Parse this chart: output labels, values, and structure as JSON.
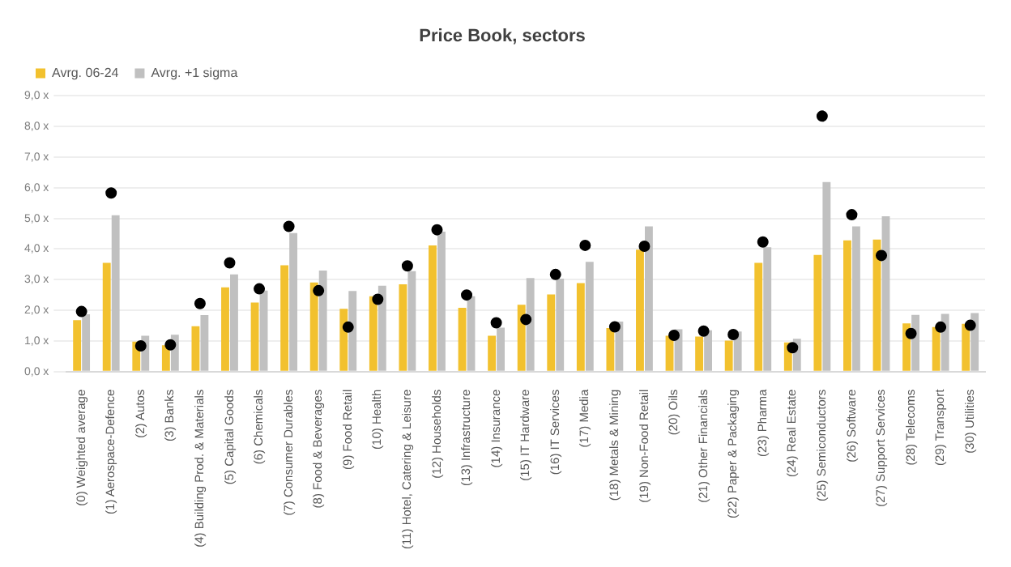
{
  "chart_data": {
    "type": "bar",
    "title": "Price Book, sectors",
    "categories": [
      "(0) Weighted average",
      "(1) Aerospace-Defence",
      "(2) Autos",
      "(3) Banks",
      "(4) Building Prod. & Materials",
      "(5) Capital Goods",
      "(6) Chemicals",
      "(7) Consumer Durables",
      "(8) Food & Beverages",
      "(9) Food Retail",
      "(10) Health",
      "(11) Hotel, Catering & Leisure",
      "(12) Households",
      "(13) Infrastructure",
      "(14) Insurance",
      "(15) IT Hardware",
      "(16) IT Services",
      "(17) Media",
      "(18) Metals & Mining",
      "(19) Non-Food Retail",
      "(20) Oils",
      "(21) Other Financials",
      "(22) Paper & Packaging",
      "(23) Pharma",
      "(24) Real Estate",
      "(25) Semiconductors",
      "(26) Software",
      "(27) Support Services",
      "(28) Telecoms",
      "(29) Transport",
      "(30) Utilities"
    ],
    "series": [
      {
        "name": "Avrg. 06-24",
        "color": "#f2c12e",
        "values": [
          1.68,
          3.55,
          0.98,
          0.86,
          1.48,
          2.75,
          2.25,
          3.47,
          2.91,
          2.05,
          2.46,
          2.85,
          4.12,
          2.08,
          1.17,
          2.18,
          2.52,
          2.89,
          1.42,
          3.98,
          1.17,
          1.14,
          1.01,
          3.55,
          0.95,
          3.81,
          4.28,
          4.31,
          1.57,
          1.45,
          1.56
        ]
      },
      {
        "name": "Avrg. +1 sigma",
        "color": "#c0c0c0",
        "values": [
          1.87,
          5.1,
          1.17,
          1.2,
          1.84,
          3.17,
          2.64,
          4.52,
          3.3,
          2.63,
          2.8,
          3.28,
          4.57,
          2.46,
          1.43,
          3.05,
          3.03,
          3.58,
          1.63,
          4.74,
          1.38,
          1.35,
          1.31,
          4.06,
          1.07,
          6.19,
          4.74,
          5.07,
          1.85,
          1.88,
          1.91
        ]
      },
      {
        "type": "scatter",
        "color": "#000000",
        "x": [
          "(0) Weighted average",
          "(1) Aerospace-Defence",
          "(2) Autos",
          "(3) Banks",
          "(4) Building Prod. & Materials",
          "(5) Capital Goods",
          "(6) Chemicals",
          "(7) Consumer Durables",
          "(8) Food & Beverages",
          "(9) Food Retail",
          "(10) Health",
          "(11) Hotel, Catering & Leisure",
          "(12) Households",
          "(13) Infrastructure",
          "(14) Insurance",
          "(15) IT Hardware",
          "(16) IT Services",
          "(17) Media",
          "(18) Metals & Mining",
          "(19) Non-Food Retail",
          "(20) Oils",
          "(21) Other Financials",
          "(22) Paper & Packaging",
          "(23) Pharma",
          "(24) Real Estate",
          "(25) Semiconductors",
          "(26) Software",
          "(27) Support Services",
          "(28) Telecoms",
          "(29) Transport",
          "(30) Utilities"
        ],
        "values": [
          1.96,
          5.83,
          0.84,
          0.87,
          2.22,
          3.55,
          2.7,
          4.74,
          2.64,
          1.45,
          2.36,
          3.45,
          4.63,
          2.5,
          1.59,
          1.7,
          3.17,
          4.12,
          1.46,
          4.09,
          1.18,
          1.32,
          1.21,
          4.23,
          0.78,
          8.34,
          5.12,
          3.79,
          1.24,
          1.45,
          1.51
        ],
        "marker": "circle"
      }
    ],
    "ylim": [
      0,
      9
    ],
    "yticks": [
      {
        "value": 0,
        "label": "0,0 x"
      },
      {
        "value": 1,
        "label": "1,0 x"
      },
      {
        "value": 2,
        "label": "2,0 x"
      },
      {
        "value": 3,
        "label": "3,0 x"
      },
      {
        "value": 4,
        "label": "4,0 x"
      },
      {
        "value": 5,
        "label": "5,0 x"
      },
      {
        "value": 6,
        "label": "6,0 x"
      },
      {
        "value": 7,
        "label": "7,0 x"
      },
      {
        "value": 8,
        "label": "8,0 x"
      },
      {
        "value": 9,
        "label": "9,0 x"
      }
    ],
    "grid": "y",
    "legend": "top left"
  }
}
